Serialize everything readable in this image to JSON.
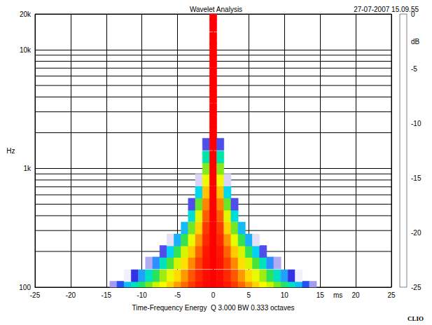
{
  "chart_data": {
    "type": "heatmap",
    "title": "Wavelet Analysis",
    "subtitle": "27-07-2007 15.09.55",
    "xlabel": "Time-Frequency Energy  Q 3.000 BW 0.333 octaves",
    "x_unit": "ms",
    "ylabel": "Hz",
    "footer": "CLIO",
    "log": "y",
    "grid": true,
    "xlim": [
      -25,
      25
    ],
    "xticks": [
      -25,
      -20,
      -15,
      -10,
      -5,
      0,
      5,
      10,
      15,
      20,
      25
    ],
    "ylim": [
      100,
      20000
    ],
    "yticks": [
      100,
      {
        "value": 1000,
        "label": "1k"
      },
      {
        "value": 10000,
        "label": "10k"
      },
      {
        "value": 20000,
        "label": "20k"
      }
    ],
    "colorbar": {
      "label": "dB",
      "range": [
        -25,
        0
      ],
      "ticks": [
        0,
        -5,
        -10,
        -15,
        -20,
        -25
      ]
    },
    "cells": [
      [
        -14,
        100,
        -21.8
      ],
      [
        -13,
        100,
        -18.8
      ],
      [
        -12,
        100,
        -16
      ],
      [
        -11,
        100,
        -13.4
      ],
      [
        -10,
        100,
        -11.1
      ],
      [
        -9,
        100,
        -9
      ],
      [
        -8,
        100,
        -7.1
      ],
      [
        -7,
        100,
        -5.4
      ],
      [
        -6,
        100,
        -4
      ],
      [
        -5,
        100,
        -2.8
      ],
      [
        -4,
        100,
        -1.8
      ],
      [
        -3,
        100,
        -1
      ],
      [
        -2,
        100,
        -0.4
      ],
      [
        -1,
        100,
        -0.1
      ],
      [
        0,
        100,
        0
      ],
      [
        1,
        100,
        -0.1
      ],
      [
        2,
        100,
        -0.4
      ],
      [
        3,
        100,
        -1
      ],
      [
        4,
        100,
        -1.8
      ],
      [
        5,
        100,
        -2.8
      ],
      [
        6,
        100,
        -4
      ],
      [
        7,
        100,
        -5.4
      ],
      [
        8,
        100,
        -7.1
      ],
      [
        9,
        100,
        -9
      ],
      [
        10,
        100,
        -11.1
      ],
      [
        11,
        100,
        -13.4
      ],
      [
        12,
        100,
        -16
      ],
      [
        13,
        100,
        -18.8
      ],
      [
        14,
        100,
        -21.8
      ],
      [
        -12,
        125,
        -24.2
      ],
      [
        -11,
        125,
        -20.3
      ],
      [
        -10,
        125,
        -16.8
      ],
      [
        -9,
        125,
        -13.6
      ],
      [
        -8,
        125,
        -10.8
      ],
      [
        -7,
        125,
        -8.2
      ],
      [
        -6,
        125,
        -6
      ],
      [
        -5,
        125,
        -4.2
      ],
      [
        -4,
        125,
        -2.7
      ],
      [
        -3,
        125,
        -1.5
      ],
      [
        -2,
        125,
        -0.7
      ],
      [
        -1,
        125,
        -0.2
      ],
      [
        0,
        125,
        0
      ],
      [
        1,
        125,
        -0.2
      ],
      [
        2,
        125,
        -0.7
      ],
      [
        3,
        125,
        -1.5
      ],
      [
        4,
        125,
        -2.7
      ],
      [
        5,
        125,
        -4.2
      ],
      [
        6,
        125,
        -6
      ],
      [
        7,
        125,
        -8.2
      ],
      [
        8,
        125,
        -10.8
      ],
      [
        9,
        125,
        -13.6
      ],
      [
        10,
        125,
        -16.8
      ],
      [
        11,
        125,
        -20.3
      ],
      [
        12,
        125,
        -24.2
      ],
      [
        -9,
        160,
        -22
      ],
      [
        -8,
        160,
        -17.4
      ],
      [
        -7,
        160,
        -13.3
      ],
      [
        -6,
        160,
        -9.8
      ],
      [
        -5,
        160,
        -6.8
      ],
      [
        -4,
        160,
        -4.3
      ],
      [
        -3,
        160,
        -2.4
      ],
      [
        -2,
        160,
        -1.1
      ],
      [
        -1,
        160,
        -0.3
      ],
      [
        0,
        160,
        0
      ],
      [
        1,
        160,
        -0.3
      ],
      [
        2,
        160,
        -1.1
      ],
      [
        3,
        160,
        -2.4
      ],
      [
        4,
        160,
        -4.3
      ],
      [
        5,
        160,
        -6.8
      ],
      [
        6,
        160,
        -9.8
      ],
      [
        7,
        160,
        -13.3
      ],
      [
        8,
        160,
        -17.4
      ],
      [
        9,
        160,
        -22
      ],
      [
        -7,
        200,
        -20.7
      ],
      [
        -6,
        200,
        -15.2
      ],
      [
        -5,
        200,
        -10.5
      ],
      [
        -4,
        200,
        -6.7
      ],
      [
        -3,
        200,
        -3.8
      ],
      [
        -2,
        200,
        -1.7
      ],
      [
        -1,
        200,
        -0.4
      ],
      [
        0,
        200,
        0
      ],
      [
        1,
        200,
        -0.4
      ],
      [
        2,
        200,
        -1.7
      ],
      [
        3,
        200,
        -3.8
      ],
      [
        4,
        200,
        -6.7
      ],
      [
        5,
        200,
        -10.5
      ],
      [
        6,
        200,
        -15.2
      ],
      [
        7,
        200,
        -20.7
      ],
      [
        -6,
        250,
        -23.4
      ],
      [
        -5,
        250,
        -16.3
      ],
      [
        -4,
        250,
        -10.4
      ],
      [
        -3,
        250,
        -5.9
      ],
      [
        -2,
        250,
        -2.6
      ],
      [
        -1,
        250,
        -0.7
      ],
      [
        0,
        250,
        0
      ],
      [
        1,
        250,
        -0.7
      ],
      [
        2,
        250,
        -2.6
      ],
      [
        3,
        250,
        -5.9
      ],
      [
        4,
        250,
        -10.4
      ],
      [
        5,
        250,
        -16.3
      ],
      [
        6,
        250,
        -23.4
      ],
      [
        -4,
        315,
        -16
      ],
      [
        -3,
        315,
        -9
      ],
      [
        -2,
        315,
        -4
      ],
      [
        -1,
        315,
        -1
      ],
      [
        0,
        315,
        0
      ],
      [
        1,
        315,
        -1
      ],
      [
        2,
        315,
        -4
      ],
      [
        3,
        315,
        -9
      ],
      [
        4,
        315,
        -16
      ],
      [
        -3,
        400,
        -14.1
      ],
      [
        -2,
        400,
        -6.3
      ],
      [
        -1,
        400,
        -1.6
      ],
      [
        0,
        400,
        0
      ],
      [
        1,
        400,
        -1.6
      ],
      [
        2,
        400,
        -6.3
      ],
      [
        3,
        400,
        -14.1
      ],
      [
        -3,
        500,
        -20.7
      ],
      [
        -2,
        500,
        -9.2
      ],
      [
        -1,
        500,
        -2.3
      ],
      [
        0,
        500,
        0
      ],
      [
        1,
        500,
        -2.3
      ],
      [
        2,
        500,
        -9.2
      ],
      [
        3,
        500,
        -20.7
      ],
      [
        -2,
        630,
        -14.8
      ],
      [
        -1,
        630,
        -3.7
      ],
      [
        0,
        630,
        0
      ],
      [
        1,
        630,
        -3.7
      ],
      [
        2,
        630,
        -14.8
      ],
      [
        -2,
        800,
        -22.7
      ],
      [
        -1,
        800,
        -5.7
      ],
      [
        0,
        800,
        0
      ],
      [
        1,
        800,
        -5.7
      ],
      [
        2,
        800,
        -22.7
      ],
      [
        -1,
        1000,
        -8.7
      ],
      [
        0,
        1000,
        0
      ],
      [
        1,
        1000,
        -8.7
      ],
      [
        -1,
        1250,
        -12.8
      ],
      [
        0,
        1250,
        0
      ],
      [
        1,
        1250,
        -12.8
      ],
      [
        -1,
        1600,
        -20.7
      ],
      [
        0,
        1600,
        0
      ],
      [
        1,
        1600,
        -20.7
      ],
      [
        0,
        2000,
        0
      ],
      [
        0,
        2500,
        0
      ],
      [
        0,
        3150,
        0
      ],
      [
        0,
        4000,
        0
      ],
      [
        0,
        5000,
        0
      ],
      [
        0,
        6300,
        0
      ],
      [
        0,
        8000,
        0
      ],
      [
        0,
        10000,
        0
      ],
      [
        0,
        12500,
        0
      ],
      [
        0,
        16000,
        0
      ],
      [
        0,
        20000,
        0
      ]
    ]
  }
}
